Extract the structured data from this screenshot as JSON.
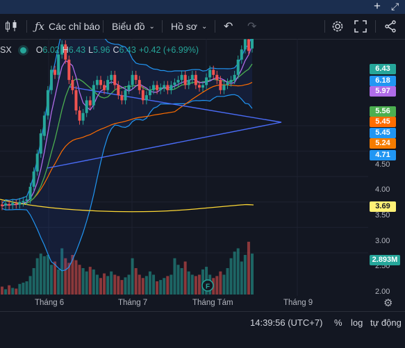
{
  "toolbar": {
    "indicators_label": "Các chỉ báo",
    "chart_type_label": "Biểu đồ",
    "profile_label": "Hồ sơ"
  },
  "legend": {
    "symbol_fragment": "SX",
    "open_key": "O",
    "open": "6.02",
    "high_key": "H",
    "high": "6.43",
    "low_key": "L",
    "low": "5.96",
    "close_key": "C",
    "close": "6.43",
    "change": "+0.42 (+6.99%)"
  },
  "price_tags": [
    {
      "text": "6.43",
      "bg": "#26a69a",
      "fg": "#ffffff"
    },
    {
      "text": "6.18",
      "bg": "#2196f3",
      "fg": "#ffffff"
    },
    {
      "text": "5.97",
      "bg": "#b06ce8",
      "fg": "#ffffff"
    },
    {
      "text": "5.56",
      "bg": "#4caf50",
      "fg": "#ffffff"
    },
    {
      "text": "5.45",
      "bg": "#ff6d00",
      "fg": "#ffffff"
    },
    {
      "text": "5.45",
      "bg": "#2196f3",
      "fg": "#ffffff"
    },
    {
      "text": "5.24",
      "bg": "#f57c00",
      "fg": "#ffffff"
    },
    {
      "text": "4.71",
      "bg": "#2196f3",
      "fg": "#ffffff"
    },
    {
      "text": "3.69",
      "bg": "#fff176",
      "fg": "#131722"
    },
    {
      "text": "2.893M",
      "bg": "#26a69a",
      "fg": "#ffffff"
    }
  ],
  "price_axis": [
    "4.50",
    "4.00",
    "3.50",
    "3.00",
    "2.50",
    "2.00"
  ],
  "time_axis": [
    "Tháng 6",
    "Tháng 7",
    "Tháng Tám",
    "Tháng 9"
  ],
  "status": {
    "time": "14:39:56 (UTC+7)",
    "percent": "%",
    "log": "log",
    "auto": "tự động"
  },
  "event_marker": "F",
  "colors": {
    "up": "#26a69a",
    "down": "#ef5350",
    "background": "#131722",
    "bb": "#2962ff",
    "ma_slow": "#fdd835"
  }
}
